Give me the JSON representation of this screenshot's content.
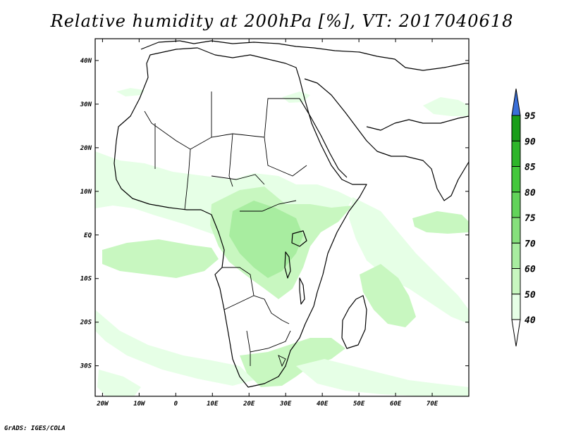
{
  "title": "Relative humidity at 200hPa [%], VT: 2017040618",
  "credit": "GrADS: IGES/COLA",
  "map": {
    "lon_range": [
      -22,
      80
    ],
    "lat_range": [
      -37,
      45
    ],
    "x_ticks": [
      {
        "lon": -20,
        "label": "20W"
      },
      {
        "lon": -10,
        "label": "10W"
      },
      {
        "lon": 0,
        "label": "0"
      },
      {
        "lon": 10,
        "label": "10E"
      },
      {
        "lon": 20,
        "label": "20E"
      },
      {
        "lon": 30,
        "label": "30E"
      },
      {
        "lon": 40,
        "label": "40E"
      },
      {
        "lon": 50,
        "label": "50E"
      },
      {
        "lon": 60,
        "label": "60E"
      },
      {
        "lon": 70,
        "label": "70E"
      }
    ],
    "y_ticks": [
      {
        "lat": 40,
        "label": "40N"
      },
      {
        "lat": 30,
        "label": "30N"
      },
      {
        "lat": 20,
        "label": "20N"
      },
      {
        "lat": 10,
        "label": "10N"
      },
      {
        "lat": 0,
        "label": "EQ"
      },
      {
        "lat": -10,
        "label": "10S"
      },
      {
        "lat": -20,
        "label": "20S"
      },
      {
        "lat": -30,
        "label": "30S"
      }
    ]
  },
  "colorbar": {
    "levels": [
      "40",
      "50",
      "60",
      "70",
      "75",
      "80",
      "85",
      "90",
      "95"
    ],
    "colors": [
      "#e6ffe6",
      "#c8f7c0",
      "#a8eda0",
      "#86e07c",
      "#62d35a",
      "#44c83c",
      "#2eb52a",
      "#1a9e1a"
    ],
    "over_color": "#3a6fd8",
    "under_color": "#ffffff"
  },
  "colors": {
    "fill_light": "#e6ffe6",
    "fill_mid": "#c8f7c0",
    "fill_dark": "#a8eda0"
  }
}
